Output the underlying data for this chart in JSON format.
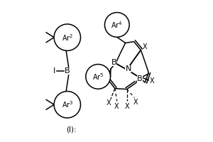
{
  "bg_color": "#ffffff",
  "fig_width": 3.0,
  "fig_height": 2.0,
  "left": {
    "B": [
      0.22,
      0.5
    ],
    "Ar2": [
      0.22,
      0.74
    ],
    "Ar3": [
      0.22,
      0.26
    ],
    "r": 0.095,
    "Ar2_label": "Ar$^2$",
    "Ar3_label": "Ar$^3$",
    "B_label": "B",
    "I_label": "I",
    "caption": "(I):"
  },
  "right": {
    "B1": [
      0.565,
      0.555
    ],
    "N": [
      0.645,
      0.51
    ],
    "B2": [
      0.735,
      0.455
    ],
    "Ar4": [
      0.575,
      0.83
    ],
    "Ar5": [
      0.44,
      0.46
    ],
    "r": 0.088,
    "Ar4_label": "Ar$^4$",
    "Ar5_label": "Ar$^5$",
    "B1_label": "B",
    "N_label": "N",
    "B2_label": "B",
    "X_label": "X"
  }
}
